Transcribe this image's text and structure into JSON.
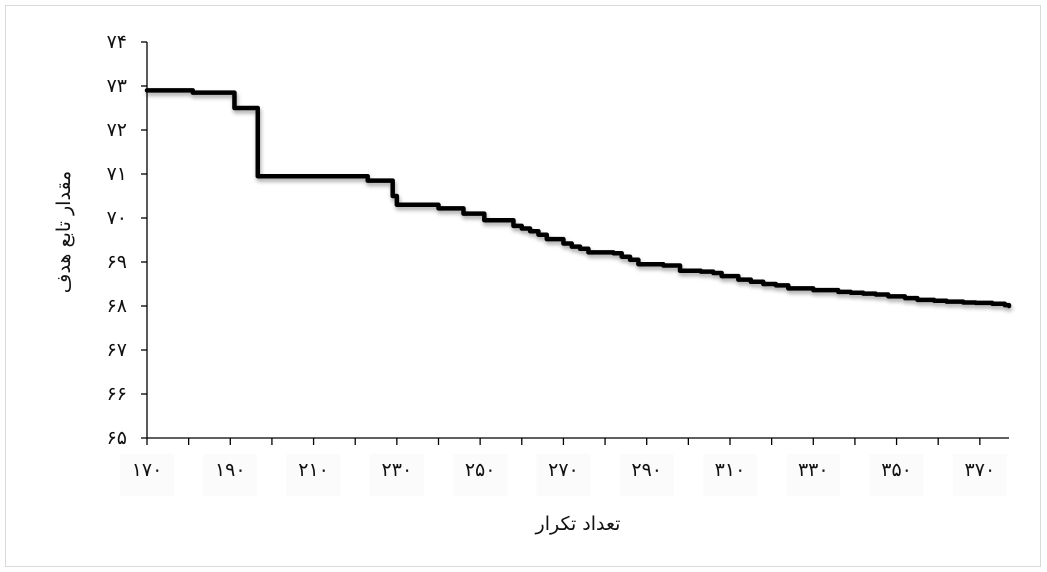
{
  "chart_data": {
    "type": "line",
    "xlabel": "تعداد تکرار",
    "ylabel": "مقدار تابع هدف",
    "xlim": [
      170,
      377
    ],
    "ylim": [
      65,
      74
    ],
    "xticks": [
      170,
      190,
      210,
      230,
      250,
      270,
      290,
      310,
      330,
      350,
      370
    ],
    "xtick_labels": [
      "۱۷۰",
      "۱۹۰",
      "۲۱۰",
      "۲۳۰",
      "۲۵۰",
      "۲۷۰",
      "۲۹۰",
      "۳۱۰",
      "۳۳۰",
      "۳۵۰",
      "۳۷۰"
    ],
    "yticks": [
      65,
      66,
      67,
      68,
      69,
      70,
      71,
      72,
      73,
      74
    ],
    "ytick_labels": [
      "۶۵",
      "۶۶",
      "۶۷",
      "۶۸",
      "۶۹",
      "۷۰",
      "۷۱",
      "۷۲",
      "۷۳",
      "۷۴"
    ],
    "grid": false,
    "legend": "none",
    "line_color": "#000000",
    "series": [
      {
        "step": true,
        "x": [
          170,
          181,
          191,
          193,
          196,
          196.6,
          223,
          228,
          229,
          230,
          232,
          240,
          242,
          246,
          248,
          251,
          253,
          256,
          258,
          260,
          262,
          264,
          266,
          268,
          270,
          272,
          274,
          276,
          278,
          280,
          282,
          284,
          286,
          288,
          292,
          294,
          298,
          300,
          303,
          306,
          308,
          312,
          315,
          318,
          321,
          324,
          327,
          330,
          333,
          336,
          339,
          342,
          345,
          348,
          352,
          355,
          359,
          362,
          366,
          369,
          373,
          376,
          377
        ],
        "y": [
          72.9,
          72.85,
          72.5,
          72.5,
          72.5,
          70.95,
          70.85,
          70.85,
          70.5,
          70.3,
          70.3,
          70.22,
          70.22,
          70.1,
          70.1,
          69.95,
          69.95,
          69.95,
          69.82,
          69.76,
          69.7,
          69.62,
          69.52,
          69.52,
          69.42,
          69.35,
          69.3,
          69.22,
          69.22,
          69.22,
          69.2,
          69.12,
          69.05,
          68.95,
          68.95,
          68.92,
          68.8,
          68.8,
          68.78,
          68.75,
          68.68,
          68.6,
          68.55,
          68.5,
          68.47,
          68.4,
          68.4,
          68.36,
          68.36,
          68.32,
          68.3,
          68.28,
          68.26,
          68.22,
          68.18,
          68.14,
          68.12,
          68.1,
          68.08,
          68.07,
          68.05,
          68.02,
          68.0
        ]
      }
    ]
  }
}
